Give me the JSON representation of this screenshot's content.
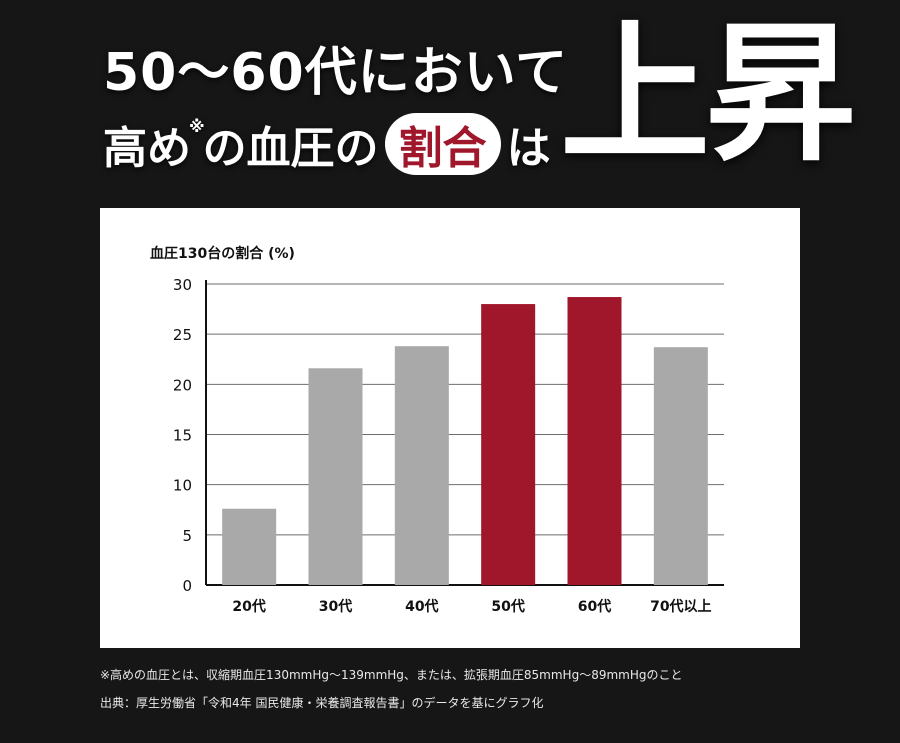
{
  "headline": {
    "line1": "50～60代において",
    "line2_part1": "高め",
    "line2_mark": "※",
    "line2_part2": "の血圧の",
    "line2_highlight": "割合",
    "line2_part3": "は",
    "big_word": "上昇"
  },
  "colors": {
    "background": "#161616",
    "highlight": "#a0162a",
    "bar_gray": "#a9a9a9",
    "bar_red": "#a0162a"
  },
  "chart_data": {
    "type": "bar",
    "title": "血圧130台の割合 (%)",
    "categories": [
      "20代",
      "30代",
      "40代",
      "50代",
      "60代",
      "70代以上"
    ],
    "values": [
      7.6,
      21.6,
      23.8,
      28.0,
      28.7,
      23.7
    ],
    "highlighted": [
      false,
      false,
      false,
      true,
      true,
      false
    ],
    "ylim": [
      0,
      30
    ],
    "yticks": [
      0,
      5,
      10,
      15,
      20,
      25,
      30
    ],
    "grid": true,
    "xlabel": "",
    "ylabel": ""
  },
  "footnote": "※高めの血圧とは、収縮期血圧130mmHg～139mmHg、または、拡張期血圧85mmHg～89mmHgのこと",
  "source": "出典：厚生労働省「令和4年 国民健康・栄養調査報告書」のデータを基にグラフ化"
}
